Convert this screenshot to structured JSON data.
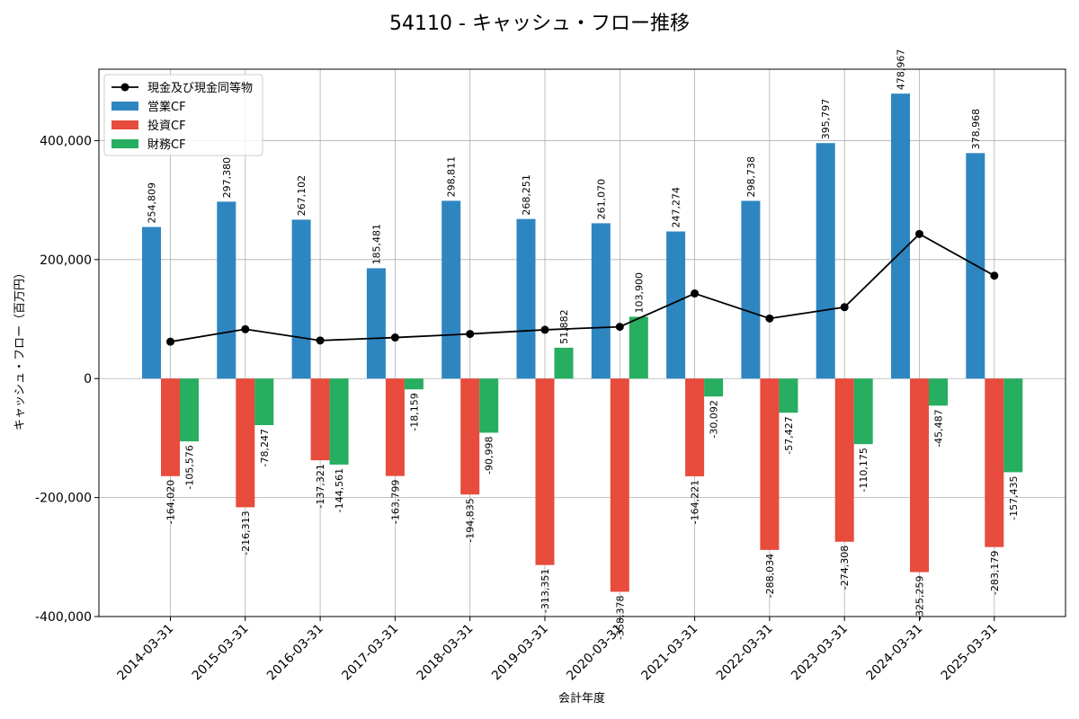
{
  "chart_data": {
    "type": "bar",
    "title": "54110 - キャッシュ・フロー推移",
    "xlabel": "会計年度",
    "ylabel": "キャッシュ・フロー（百万円）",
    "ylim": [
      -400000,
      520000
    ],
    "yticks": [
      -400000,
      -200000,
      0,
      200000,
      400000
    ],
    "ytick_labels": [
      "-400,000",
      "-200,000",
      "0",
      "200,000",
      "400,000"
    ],
    "grid": true,
    "legend_position": "top-left",
    "categories": [
      "2014-03-31",
      "2015-03-31",
      "2016-03-31",
      "2017-03-31",
      "2018-03-31",
      "2019-03-31",
      "2020-03-31",
      "2021-03-31",
      "2022-03-31",
      "2023-03-31",
      "2024-03-31",
      "2025-03-31"
    ],
    "series": [
      {
        "name": "営業CF",
        "kind": "bar",
        "color": "#2e86c1",
        "values": [
          254809,
          297380,
          267102,
          185481,
          298811,
          268251,
          261070,
          247274,
          298738,
          395797,
          478967,
          378968
        ],
        "labels": [
          "254,809",
          "297,380",
          "267,102",
          "185,481",
          "298,811",
          "268,251",
          "261,070",
          "247,274",
          "298,738",
          "395,797",
          "478,967",
          "378,968"
        ]
      },
      {
        "name": "投資CF",
        "kind": "bar",
        "color": "#e74c3c",
        "values": [
          -164020,
          -216313,
          -137321,
          -163799,
          -194835,
          -313351,
          -358378,
          -164221,
          -288034,
          -274308,
          -325259,
          -283179
        ],
        "labels": [
          "-164,020",
          "-216,313",
          "-137,321",
          "-163,799",
          "-194,835",
          "-313,351",
          "-358,378",
          "-164,221",
          "-288,034",
          "-274,308",
          "-325,259",
          "-283,179"
        ]
      },
      {
        "name": "財務CF",
        "kind": "bar",
        "color": "#27ae60",
        "values": [
          -105576,
          -78247,
          -144561,
          -18159,
          -90998,
          51882,
          103900,
          -30092,
          -57427,
          -110175,
          -45487,
          -157435
        ],
        "labels": [
          "-105,576",
          "-78,247",
          "-144,561",
          "-18,159",
          "-90,998",
          "51,882",
          "103,900",
          "-30,092",
          "-57,427",
          "-110,175",
          "-45,487",
          "-157,435"
        ]
      },
      {
        "name": "現金及び現金同等物",
        "kind": "line",
        "color": "#000000",
        "values": [
          62000,
          83000,
          64000,
          69000,
          75000,
          82000,
          87000,
          143000,
          101000,
          120000,
          243000,
          173000
        ]
      }
    ]
  }
}
